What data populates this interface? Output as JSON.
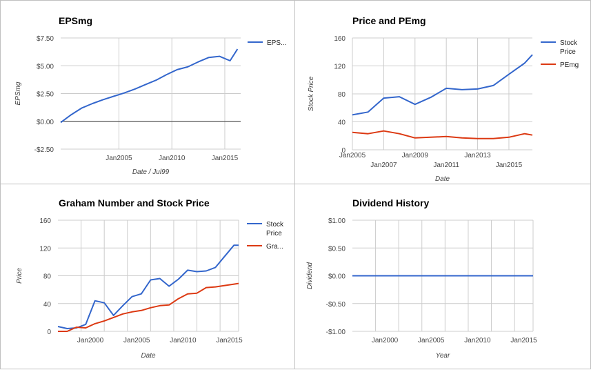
{
  "chart_data": [
    {
      "type": "line",
      "title": "EPSmg",
      "xlabel": "Date / Jul99",
      "ylabel": "EPSmg",
      "xlim": [
        1999.5,
        2016.5
      ],
      "ylim": [
        -2.5,
        7.5
      ],
      "yticks": [
        -2.5,
        0,
        2.5,
        5,
        7.5
      ],
      "ytick_labels": [
        "-$2.50",
        "$0.00",
        "$2.50",
        "$5.00",
        "$7.50"
      ],
      "xticks": [
        2005,
        2010,
        2015
      ],
      "xtick_labels": [
        "Jan2005",
        "Jan2010",
        "Jan2015"
      ],
      "xgrid": [
        2005,
        2010,
        2015
      ],
      "baseline": 0,
      "legend": "right",
      "series": [
        {
          "name": "EPS...",
          "color": "#3366cc",
          "x": [
            1999.5,
            2000.5,
            2001.5,
            2002.5,
            2003.5,
            2004.5,
            2005.5,
            2006.5,
            2007.5,
            2008.5,
            2009.5,
            2010.5,
            2011.5,
            2012.5,
            2013.5,
            2014.5,
            2015.5,
            2016.2
          ],
          "y": [
            -0.1,
            0.6,
            1.2,
            1.6,
            1.95,
            2.25,
            2.55,
            2.9,
            3.3,
            3.7,
            4.2,
            4.65,
            4.9,
            5.35,
            5.75,
            5.85,
            5.45,
            6.5
          ]
        }
      ]
    },
    {
      "type": "line",
      "title": "Price and PEmg",
      "xlabel": "Date",
      "ylabel": "Stock Price",
      "xlim": [
        2005,
        2016.5
      ],
      "ylim": [
        0,
        160
      ],
      "yticks": [
        0,
        40,
        80,
        120,
        160
      ],
      "ytick_labels": [
        "0",
        "40",
        "80",
        "120",
        "160"
      ],
      "xticks": [
        2005,
        2007,
        2009,
        2011,
        2013,
        2015
      ],
      "xtick_labels": [
        "Jan2005",
        "Jan2007",
        "Jan2009",
        "Jan2011",
        "Jan2013",
        "Jan2015"
      ],
      "xgrid": [
        2005,
        2007,
        2009,
        2011,
        2013,
        2015
      ],
      "legend": "right",
      "series": [
        {
          "name": "Stock Price",
          "color": "#3366cc",
          "x": [
            2005,
            2006,
            2007,
            2008,
            2009,
            2010,
            2011,
            2012,
            2013,
            2014,
            2015,
            2016,
            2016.5
          ],
          "y": [
            50,
            54,
            74,
            76,
            65,
            75,
            88,
            86,
            87,
            92,
            108,
            124,
            136
          ]
        },
        {
          "name": "PEmg",
          "color": "#dc3912",
          "x": [
            2005,
            2006,
            2007,
            2008,
            2009,
            2010,
            2011,
            2012,
            2013,
            2014,
            2015,
            2016,
            2016.5
          ],
          "y": [
            25,
            23,
            27,
            23,
            17,
            18,
            19,
            17,
            16,
            16,
            18,
            23,
            21
          ]
        }
      ]
    },
    {
      "type": "line",
      "title": "Graham Number and Stock Price",
      "xlabel": "Date",
      "ylabel": "Price",
      "xlim": [
        1996.5,
        2016
      ],
      "ylim": [
        0,
        160
      ],
      "yticks": [
        0,
        40,
        80,
        120,
        160
      ],
      "ytick_labels": [
        "0",
        "40",
        "80",
        "120",
        "160"
      ],
      "xticks": [
        2000,
        2005,
        2010,
        2015
      ],
      "xtick_labels": [
        "Jan2000",
        "Jan2005",
        "Jan2010",
        "Jan2015"
      ],
      "xgrid": [
        1999,
        2001.5,
        2004,
        2006.5,
        2009,
        2011.5,
        2014,
        2016
      ],
      "legend": "right",
      "series": [
        {
          "name": "Stock Price",
          "color": "#3366cc",
          "x": [
            1996.5,
            1997.5,
            1998.5,
            1999.5,
            2000.5,
            2001.5,
            2002.5,
            2003.5,
            2004.5,
            2005.5,
            2006.5,
            2007.5,
            2008.5,
            2009.5,
            2010.5,
            2011.5,
            2012.5,
            2013.5,
            2014.5,
            2015.5,
            2016
          ],
          "y": [
            7,
            4,
            5,
            10,
            44,
            41,
            23,
            37,
            50,
            54,
            74,
            76,
            65,
            75,
            88,
            86,
            87,
            92,
            108,
            124,
            124
          ]
        },
        {
          "name": "Gra...",
          "color": "#dc3912",
          "x": [
            1996.5,
            1997.5,
            1998.5,
            1999.5,
            2000.5,
            2001.5,
            2002.5,
            2003.5,
            2004.5,
            2005.5,
            2006.5,
            2007.5,
            2008.5,
            2009.5,
            2010.5,
            2011.5,
            2012.5,
            2013.5,
            2014.5,
            2015.5,
            2016
          ],
          "y": [
            0,
            0,
            6,
            5,
            11,
            15,
            20,
            25,
            28,
            30,
            34,
            37,
            38,
            47,
            54,
            55,
            63,
            64,
            66,
            68,
            69
          ]
        }
      ]
    },
    {
      "type": "line",
      "title": "Dividend History",
      "xlabel": "Year",
      "ylabel": "Dividend",
      "xlim": [
        1996.5,
        2016
      ],
      "ylim": [
        -1,
        1
      ],
      "yticks": [
        -1,
        -0.5,
        0,
        0.5,
        1
      ],
      "ytick_labels": [
        "-$1.00",
        "-$0.50",
        "$0.00",
        "$0.50",
        "$1.00"
      ],
      "xticks": [
        2000,
        2005,
        2010,
        2015
      ],
      "xtick_labels": [
        "Jan2000",
        "Jan2005",
        "Jan2010",
        "Jan2015"
      ],
      "xgrid": [
        1999,
        2001.5,
        2004,
        2006.5,
        2009,
        2011.5,
        2014,
        2016
      ],
      "legend": "none",
      "series": [
        {
          "color": "#3366cc",
          "x": [
            1996.5,
            2016
          ],
          "y": [
            0,
            0
          ]
        }
      ]
    }
  ]
}
